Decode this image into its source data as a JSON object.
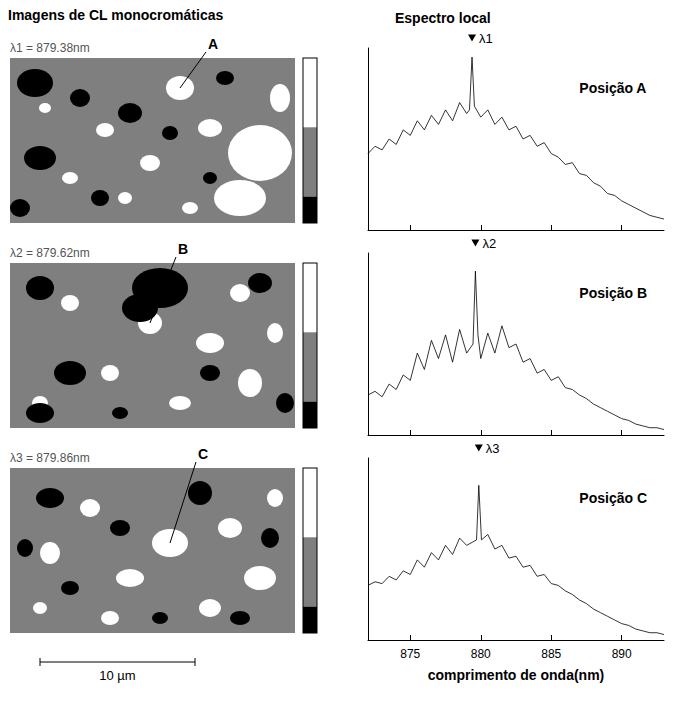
{
  "headers": {
    "left": "Imagens de CL monocromáticas",
    "right": "Espectro local"
  },
  "images": [
    {
      "label": "λ1 = 879.38nm",
      "point": "A"
    },
    {
      "label": "λ2 = 879.62nm",
      "point": "B"
    },
    {
      "label": "λ3 = 879.86nm",
      "point": "C"
    }
  ],
  "scale_bar": "10 µm",
  "chart_data": [
    {
      "type": "line",
      "title": "Posição A",
      "color": "#000000",
      "x": [
        872,
        872.5,
        873,
        873.5,
        874,
        874.5,
        875,
        875.5,
        876,
        876.5,
        877,
        877.5,
        878,
        878.5,
        879,
        879.2,
        879.38,
        879.55,
        880,
        880.5,
        881,
        881.5,
        882,
        882.5,
        883,
        883.5,
        884,
        884.5,
        885,
        885.5,
        886,
        886.5,
        887,
        887.5,
        888,
        888.5,
        889,
        889.5,
        890,
        890.5,
        891,
        891.5,
        892,
        892.5,
        893
      ],
      "values": [
        0.42,
        0.46,
        0.44,
        0.5,
        0.47,
        0.55,
        0.52,
        0.6,
        0.55,
        0.63,
        0.58,
        0.66,
        0.6,
        0.7,
        0.64,
        0.66,
        0.95,
        0.68,
        0.62,
        0.66,
        0.58,
        0.62,
        0.55,
        0.57,
        0.5,
        0.52,
        0.46,
        0.48,
        0.42,
        0.4,
        0.36,
        0.37,
        0.31,
        0.3,
        0.26,
        0.24,
        0.2,
        0.19,
        0.16,
        0.14,
        0.12,
        0.1,
        0.08,
        0.07,
        0.06
      ],
      "peak": {
        "x": 879.38,
        "label": "λ1"
      },
      "xlim": [
        872,
        893
      ],
      "xticks": [
        875,
        880,
        885,
        890
      ],
      "ylim": [
        0,
        1
      ],
      "tick_labels": false
    },
    {
      "type": "line",
      "title": "Posição B",
      "color": "#000000",
      "x": [
        872,
        872.5,
        873,
        873.5,
        874,
        874.5,
        875,
        875.5,
        876,
        876.5,
        877,
        877.5,
        878,
        878.5,
        879,
        879.45,
        879.62,
        879.8,
        880,
        880.5,
        881,
        881.5,
        882,
        882.5,
        883,
        883.5,
        884,
        884.5,
        885,
        885.5,
        886,
        886.5,
        887,
        887.5,
        888,
        888.5,
        889,
        889.5,
        890,
        890.5,
        891,
        891.5,
        892,
        892.5,
        893
      ],
      "values": [
        0.22,
        0.24,
        0.21,
        0.28,
        0.25,
        0.33,
        0.3,
        0.45,
        0.36,
        0.52,
        0.42,
        0.55,
        0.4,
        0.58,
        0.45,
        0.5,
        0.9,
        0.55,
        0.42,
        0.56,
        0.45,
        0.6,
        0.48,
        0.5,
        0.4,
        0.42,
        0.34,
        0.36,
        0.3,
        0.32,
        0.26,
        0.25,
        0.22,
        0.2,
        0.17,
        0.15,
        0.13,
        0.11,
        0.09,
        0.08,
        0.06,
        0.05,
        0.04,
        0.04,
        0.03
      ],
      "peak": {
        "x": 879.62,
        "label": "λ2"
      },
      "xlim": [
        872,
        893
      ],
      "xticks": [
        875,
        880,
        885,
        890
      ],
      "ylim": [
        0,
        1
      ],
      "tick_labels": false
    },
    {
      "type": "line",
      "title": "Posição C",
      "color": "#000000",
      "x": [
        872,
        872.5,
        873,
        873.5,
        874,
        874.5,
        875,
        875.5,
        876,
        876.5,
        877,
        877.5,
        878,
        878.5,
        879,
        879.7,
        879.86,
        880.05,
        880.5,
        881,
        881.5,
        882,
        882.5,
        883,
        883.5,
        884,
        884.5,
        885,
        885.5,
        886,
        886.5,
        887,
        887.5,
        888,
        888.5,
        889,
        889.5,
        890,
        890.5,
        891,
        891.5,
        892,
        892.5,
        893
      ],
      "values": [
        0.3,
        0.32,
        0.31,
        0.35,
        0.33,
        0.38,
        0.36,
        0.44,
        0.4,
        0.48,
        0.44,
        0.52,
        0.47,
        0.56,
        0.52,
        0.55,
        0.85,
        0.55,
        0.58,
        0.5,
        0.52,
        0.45,
        0.46,
        0.4,
        0.41,
        0.35,
        0.36,
        0.31,
        0.3,
        0.27,
        0.25,
        0.22,
        0.2,
        0.17,
        0.15,
        0.13,
        0.11,
        0.09,
        0.08,
        0.06,
        0.05,
        0.04,
        0.04,
        0.03
      ],
      "peak": {
        "x": 879.86,
        "label": "λ3"
      },
      "xlim": [
        872,
        893
      ],
      "xticks": [
        875,
        880,
        885,
        890
      ],
      "ylim": [
        0,
        1
      ],
      "xlabel": "comprimento de onda(nm)",
      "tick_labels": "x"
    }
  ]
}
